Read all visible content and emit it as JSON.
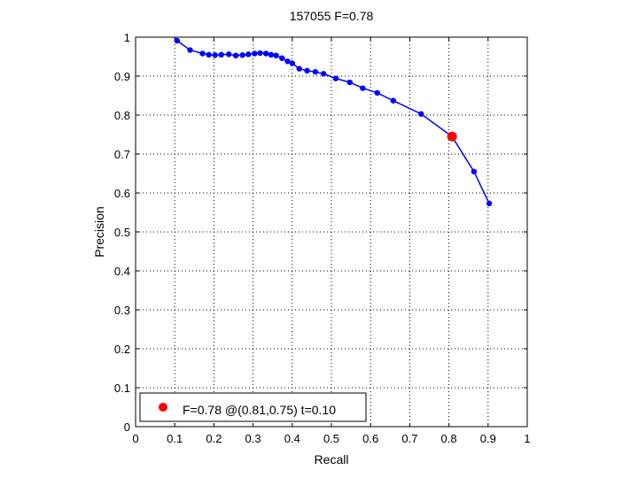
{
  "chart_data": {
    "type": "line",
    "title": "157055 F=0.78",
    "xlabel": "Recall",
    "ylabel": "Precision",
    "xlim": [
      0,
      1
    ],
    "ylim": [
      0,
      1
    ],
    "grid": true,
    "xticks": [
      "0",
      "0.1",
      "0.2",
      "0.3",
      "0.4",
      "0.5",
      "0.6",
      "0.7",
      "0.8",
      "0.9",
      "1"
    ],
    "yticks": [
      "0",
      "0.1",
      "0.2",
      "0.3",
      "0.4",
      "0.5",
      "0.6",
      "0.7",
      "0.8",
      "0.9",
      "1"
    ],
    "series": [
      {
        "color": "#0000ff",
        "marker": "dot",
        "points": [
          [
            0.106,
            0.991
          ],
          [
            0.139,
            0.967
          ],
          [
            0.171,
            0.958
          ],
          [
            0.187,
            0.955
          ],
          [
            0.203,
            0.954
          ],
          [
            0.219,
            0.955
          ],
          [
            0.238,
            0.956
          ],
          [
            0.256,
            0.953
          ],
          [
            0.273,
            0.954
          ],
          [
            0.288,
            0.956
          ],
          [
            0.304,
            0.958
          ],
          [
            0.318,
            0.959
          ],
          [
            0.333,
            0.958
          ],
          [
            0.346,
            0.955
          ],
          [
            0.359,
            0.953
          ],
          [
            0.374,
            0.946
          ],
          [
            0.388,
            0.938
          ],
          [
            0.4,
            0.933
          ],
          [
            0.418,
            0.919
          ],
          [
            0.438,
            0.914
          ],
          [
            0.459,
            0.911
          ],
          [
            0.48,
            0.906
          ],
          [
            0.511,
            0.894
          ],
          [
            0.547,
            0.884
          ],
          [
            0.58,
            0.869
          ],
          [
            0.617,
            0.857
          ],
          [
            0.658,
            0.837
          ],
          [
            0.729,
            0.803
          ],
          [
            0.808,
            0.745
          ],
          [
            0.864,
            0.655
          ],
          [
            0.903,
            0.573
          ]
        ]
      }
    ],
    "highlight": {
      "x": 0.808,
      "y": 0.745,
      "color": "#ff0000",
      "legend_label": "F=0.78 @(0.81,0.75) t=0.10"
    },
    "legend_position": "bottom-left"
  }
}
